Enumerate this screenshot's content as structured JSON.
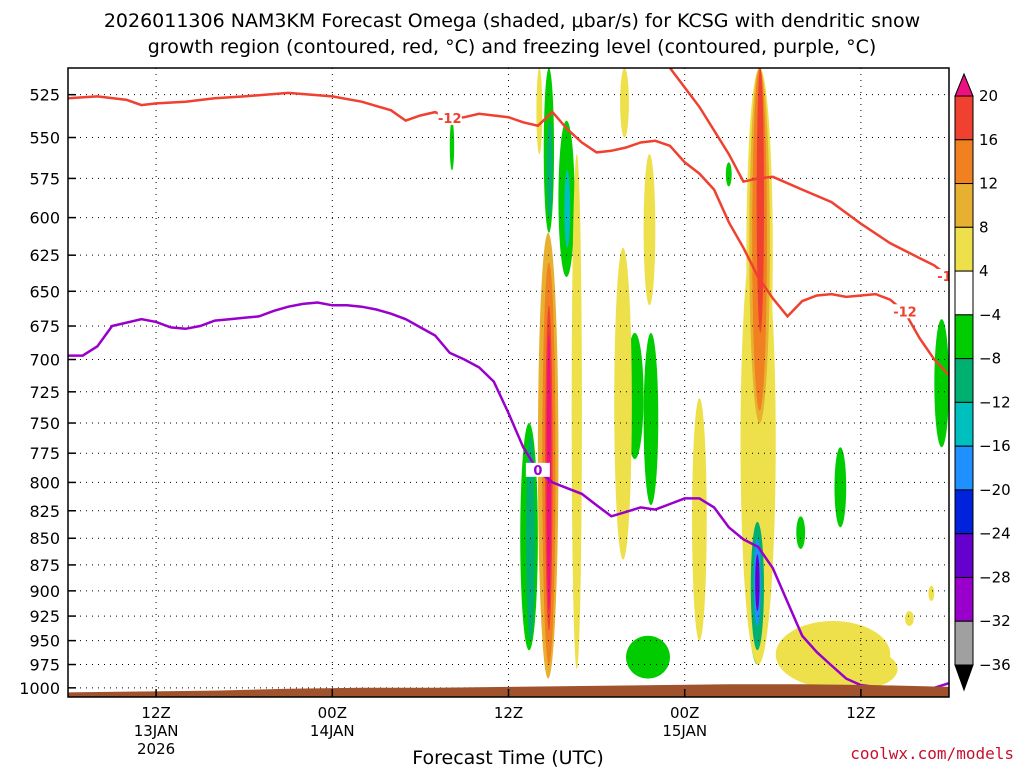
{
  "title_line1": "2026011306 NAM3KM Forecast Omega (shaded, μbar/s) for KCSG with dendritic snow",
  "title_line2": "growth region (contoured, red, °C) and freezing level (contoured, purple, °C)",
  "credit": "coolwx.com/models",
  "chart_data": {
    "type": "heatmap",
    "xlabel": "Forecast Time (UTC)",
    "ylabel": "",
    "y_ticks": [
      525,
      550,
      575,
      600,
      625,
      650,
      675,
      700,
      725,
      750,
      775,
      800,
      825,
      850,
      875,
      900,
      925,
      950,
      975,
      1000
    ],
    "ylim": [
      1010,
      510
    ],
    "y_scale": "log-pressure",
    "xlim": [
      0,
      60
    ],
    "x_ticks": [
      {
        "hour": 6,
        "label": "12Z",
        "date": "13JAN",
        "year": "2026"
      },
      {
        "hour": 18,
        "label": "00Z",
        "date": "14JAN",
        "year": ""
      },
      {
        "hour": 30,
        "label": "12Z",
        "date": "",
        "year": ""
      },
      {
        "hour": 42,
        "label": "00Z",
        "date": "15JAN",
        "year": ""
      },
      {
        "hour": 54,
        "label": "12Z",
        "date": "",
        "year": ""
      }
    ],
    "grid": true,
    "colorbar": {
      "levels": [
        -36,
        -32,
        -28,
        -24,
        -20,
        -16,
        -12,
        -8,
        -4,
        4,
        8,
        12,
        16,
        20
      ],
      "tick_labels": [
        "20",
        "16",
        "12",
        "8",
        "4",
        "−4",
        "−8",
        "−12",
        "−16",
        "−20",
        "−24",
        "−28",
        "−32",
        "−36"
      ],
      "colors": [
        "#000000",
        "#a0a0a0",
        "#9900cc",
        "#6600cc",
        "#0022dd",
        "#1e90ff",
        "#00bfbf",
        "#00b070",
        "#00cc00",
        "#ffffff",
        "#eee04a",
        "#e8b030",
        "#f08020",
        "#f04030",
        "#ee1080"
      ]
    },
    "contours": [
      {
        "name": "-12",
        "color": "#f04030",
        "label": "-12",
        "points": [
          [
            0,
            527
          ],
          [
            2,
            526
          ],
          [
            4,
            528
          ],
          [
            5,
            531
          ],
          [
            6,
            530
          ],
          [
            8,
            529
          ],
          [
            10,
            527
          ],
          [
            12,
            526
          ],
          [
            15,
            524
          ],
          [
            18,
            526
          ],
          [
            20,
            529
          ],
          [
            22,
            534
          ],
          [
            23,
            540
          ],
          [
            24,
            537
          ],
          [
            25,
            535
          ],
          [
            26,
            539
          ],
          [
            27,
            538
          ],
          [
            28,
            536
          ],
          [
            29,
            537
          ],
          [
            30,
            538
          ],
          [
            31,
            541
          ],
          [
            32,
            543
          ],
          [
            33,
            535
          ],
          [
            34,
            545
          ],
          [
            35,
            553
          ],
          [
            36,
            559
          ],
          [
            37,
            558
          ],
          [
            38,
            556
          ],
          [
            39,
            553
          ],
          [
            40,
            552
          ],
          [
            41,
            555
          ],
          [
            42,
            565
          ],
          [
            43,
            572
          ],
          [
            44,
            582
          ],
          [
            45,
            603
          ],
          [
            46,
            620
          ],
          [
            47,
            640
          ],
          [
            48,
            655
          ],
          [
            49,
            668
          ],
          [
            50,
            657
          ],
          [
            51,
            653
          ],
          [
            52,
            652
          ],
          [
            53,
            654
          ],
          [
            55,
            652
          ],
          [
            56,
            656
          ],
          [
            57,
            665
          ],
          [
            58,
            684
          ],
          [
            59,
            700
          ],
          [
            60,
            712
          ]
        ]
      },
      {
        "name": "-12 upper",
        "color": "#f04030",
        "label": "-12",
        "points": [
          [
            41,
            510
          ],
          [
            43,
            532
          ],
          [
            45,
            560
          ],
          [
            46,
            577
          ],
          [
            47,
            575
          ],
          [
            48,
            574
          ],
          [
            49,
            578
          ],
          [
            50,
            582
          ],
          [
            52,
            590
          ],
          [
            54,
            604
          ],
          [
            56,
            617
          ],
          [
            58,
            627
          ],
          [
            59,
            632
          ],
          [
            60,
            640
          ]
        ]
      },
      {
        "name": "0",
        "color": "#9900cc",
        "label": "0",
        "points": [
          [
            0,
            697
          ],
          [
            1,
            697
          ],
          [
            2,
            690
          ],
          [
            3,
            675
          ],
          [
            5,
            670
          ],
          [
            6,
            672
          ],
          [
            7,
            676
          ],
          [
            8,
            677
          ],
          [
            9,
            675
          ],
          [
            10,
            671
          ],
          [
            11,
            670
          ],
          [
            12,
            669
          ],
          [
            13,
            668
          ],
          [
            14,
            664
          ],
          [
            15,
            661
          ],
          [
            16,
            659
          ],
          [
            17,
            658
          ],
          [
            18,
            660
          ],
          [
            19,
            660
          ],
          [
            20,
            661
          ],
          [
            21,
            663
          ],
          [
            22,
            666
          ],
          [
            23,
            670
          ],
          [
            24,
            676
          ],
          [
            25,
            682
          ],
          [
            26,
            695
          ],
          [
            27,
            700
          ],
          [
            28,
            706
          ],
          [
            29,
            717
          ],
          [
            30,
            742
          ],
          [
            31,
            770
          ],
          [
            32,
            790
          ],
          [
            33,
            800
          ],
          [
            34,
            805
          ],
          [
            35,
            810
          ],
          [
            36,
            820
          ],
          [
            37,
            830
          ],
          [
            38,
            826
          ],
          [
            39,
            822
          ],
          [
            40,
            824
          ],
          [
            41,
            819
          ],
          [
            42,
            814
          ],
          [
            43,
            814
          ],
          [
            44,
            822
          ],
          [
            45,
            840
          ],
          [
            46,
            851
          ],
          [
            47,
            858
          ],
          [
            48,
            878
          ],
          [
            49,
            911
          ],
          [
            50,
            945
          ],
          [
            51,
            962
          ],
          [
            52,
            976
          ],
          [
            53,
            990
          ],
          [
            54,
            997
          ],
          [
            55,
            999
          ]
        ]
      },
      {
        "name": "0 tail",
        "color": "#9900cc",
        "label": "",
        "points": [
          [
            59,
            1000
          ],
          [
            60,
            995
          ]
        ]
      }
    ],
    "surface_fill_color": "#a0522d",
    "surface_top": [
      [
        0,
        1005
      ],
      [
        5,
        1004
      ],
      [
        10,
        1003
      ],
      [
        15,
        1001
      ],
      [
        20,
        1000
      ],
      [
        25,
        1000
      ],
      [
        30,
        999
      ],
      [
        35,
        998
      ],
      [
        40,
        997
      ],
      [
        45,
        996
      ],
      [
        50,
        996
      ],
      [
        55,
        997
      ],
      [
        60,
        999
      ]
    ],
    "shaded_features": [
      {
        "level": "8",
        "x_range": [
          32.0,
          33.4
        ],
        "p_range": [
          610,
          990
        ]
      },
      {
        "level": "12",
        "x_range": [
          32.3,
          33.2
        ],
        "p_range": [
          630,
          975
        ]
      },
      {
        "level": "16",
        "x_range": [
          32.5,
          33.0
        ],
        "p_range": [
          660,
          940
        ]
      },
      {
        "level": "20",
        "x_range": [
          32.6,
          32.9
        ],
        "p_range": [
          680,
          920
        ]
      },
      {
        "level": "-8",
        "x_range": [
          31.2,
          31.8
        ],
        "p_range": [
          760,
          950
        ]
      },
      {
        "level": "-4",
        "x_range": [
          30.8,
          32.0
        ],
        "p_range": [
          750,
          960
        ]
      },
      {
        "level": "-4",
        "x_range": [
          32.4,
          33.1
        ],
        "p_range": [
          510,
          610
        ]
      },
      {
        "level": "-8",
        "x_range": [
          32.6,
          33.0
        ],
        "p_range": [
          540,
          600
        ]
      },
      {
        "level": "-4",
        "x_range": [
          33.4,
          34.5
        ],
        "p_range": [
          540,
          640
        ]
      },
      {
        "level": "-12",
        "x_range": [
          33.8,
          34.2
        ],
        "p_range": [
          570,
          620
        ]
      },
      {
        "level": "4",
        "x_range": [
          31.9,
          32.3
        ],
        "p_range": [
          510,
          560
        ]
      },
      {
        "level": "4",
        "x_range": [
          34.3,
          35.0
        ],
        "p_range": [
          560,
          980
        ]
      },
      {
        "level": "-4",
        "x_range": [
          26.0,
          26.3
        ],
        "p_range": [
          540,
          570
        ]
      },
      {
        "level": "4",
        "x_range": [
          37.6,
          38.2
        ],
        "p_range": [
          510,
          550
        ]
      },
      {
        "level": "-4",
        "x_range": [
          38.0,
          39.2
        ],
        "p_range": [
          680,
          780
        ]
      },
      {
        "level": "4",
        "x_range": [
          37.2,
          38.4
        ],
        "p_range": [
          620,
          870
        ]
      },
      {
        "level": "4",
        "x_range": [
          39.2,
          40.0
        ],
        "p_range": [
          560,
          660
        ]
      },
      {
        "level": "-4",
        "x_range": [
          38.0,
          41.0
        ],
        "p_range": [
          945,
          990
        ]
      },
      {
        "level": "4",
        "x_range": [
          42.5,
          43.5
        ],
        "p_range": [
          730,
          950
        ]
      },
      {
        "level": "-4",
        "x_range": [
          44.8,
          45.2
        ],
        "p_range": [
          565,
          580
        ]
      },
      {
        "level": "16",
        "x_range": [
          46.9,
          47.4
        ],
        "p_range": [
          510,
          680
        ]
      },
      {
        "level": "12",
        "x_range": [
          46.6,
          47.6
        ],
        "p_range": [
          510,
          740
        ]
      },
      {
        "level": "8",
        "x_range": [
          46.4,
          47.8
        ],
        "p_range": [
          510,
          750
        ]
      },
      {
        "level": "4",
        "x_range": [
          46.2,
          48.0
        ],
        "p_range": [
          510,
          760
        ]
      },
      {
        "level": "-4",
        "x_range": [
          46.3,
          47.6
        ],
        "p_range": [
          820,
          975
        ]
      },
      {
        "level": "-8",
        "x_range": [
          46.5,
          47.4
        ],
        "p_range": [
          835,
          960
        ]
      },
      {
        "level": "-16",
        "x_range": [
          46.7,
          47.2
        ],
        "p_range": [
          850,
          935
        ]
      },
      {
        "level": "-24",
        "x_range": [
          46.8,
          47.1
        ],
        "p_range": [
          865,
          920
        ]
      },
      {
        "level": "4",
        "x_range": [
          45.8,
          48.2
        ],
        "p_range": [
          600,
          975
        ]
      },
      {
        "level": "-4",
        "x_range": [
          49.6,
          50.2
        ],
        "p_range": [
          830,
          860
        ]
      },
      {
        "level": "-4",
        "x_range": [
          52.2,
          53.0
        ],
        "p_range": [
          770,
          840
        ]
      },
      {
        "level": "4",
        "x_range": [
          48.2,
          56.0
        ],
        "p_range": [
          930,
          1000
        ]
      },
      {
        "level": "4",
        "x_range": [
          57.0,
          57.6
        ],
        "p_range": [
          920,
          935
        ]
      },
      {
        "level": "-4",
        "x_range": [
          59.0,
          60.0
        ],
        "p_range": [
          670,
          770
        ]
      },
      {
        "level": "4",
        "x_range": [
          58.6,
          59.0
        ],
        "p_range": [
          895,
          910
        ]
      },
      {
        "level": "4",
        "x_range": [
          52.0,
          56.5
        ],
        "p_range": [
          960,
          1000
        ]
      },
      {
        "level": "-4",
        "x_range": [
          39.2,
          40.2
        ],
        "p_range": [
          680,
          820
        ]
      }
    ]
  }
}
